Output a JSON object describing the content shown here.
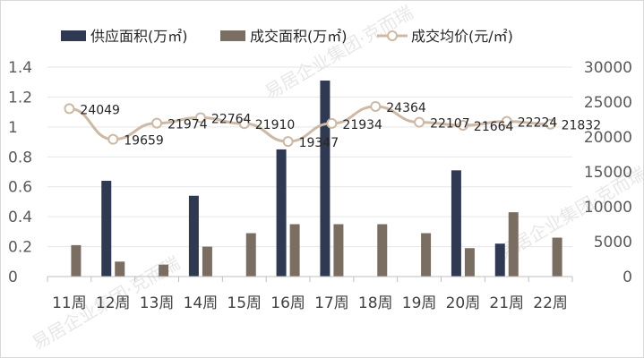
{
  "colors": {
    "supply": "#2f3a52",
    "deal": "#7a6e62",
    "avg_line": "#cdb9a5",
    "grid": "#e6e6e6",
    "axis": "#bfbfbf"
  },
  "legend": {
    "supply": "供应面积(万㎡)",
    "deal": "成交面积(万㎡)",
    "avg": "成交均价(元/㎡)"
  },
  "watermark": "易居企业集团·克而瑞",
  "chart_data": {
    "type": "bar",
    "categories": [
      "11周",
      "12周",
      "13周",
      "14周",
      "15周",
      "16周",
      "17周",
      "18周",
      "19周",
      "20周",
      "21周",
      "22周"
    ],
    "series": [
      {
        "name": "供应面积(万㎡)",
        "type": "bar",
        "axis": "left",
        "values": [
          0,
          0.64,
          0,
          0.54,
          0,
          0.85,
          1.31,
          0,
          0,
          0.71,
          0.22,
          0
        ]
      },
      {
        "name": "成交面积(万㎡)",
        "type": "bar",
        "axis": "left",
        "values": [
          0.21,
          0.1,
          0.08,
          0.2,
          0.29,
          0.35,
          0.35,
          0.35,
          0.29,
          0.19,
          0.43,
          0.26
        ]
      },
      {
        "name": "成交均价(元/㎡)",
        "type": "line",
        "axis": "right",
        "values": [
          24049,
          19659,
          21974,
          22764,
          21910,
          19347,
          21934,
          24364,
          22107,
          21664,
          22224,
          21832
        ]
      }
    ],
    "y_left": {
      "ylim": [
        0,
        1.4
      ],
      "ticks": [
        "0",
        "0.2",
        "0.4",
        "0.6",
        "0.8",
        "1",
        "1.2",
        "1.4"
      ]
    },
    "y_right": {
      "ylim": [
        0,
        30000
      ],
      "ticks": [
        "0",
        "5000",
        "10000",
        "15000",
        "20000",
        "25000",
        "30000"
      ]
    },
    "data_labels": [
      "24049",
      "19659",
      "21974",
      "22764",
      "21910",
      "19347",
      "21934",
      "24364",
      "22107",
      "21664",
      "22224",
      "21832"
    ],
    "legend_position": "top",
    "grid": true
  }
}
